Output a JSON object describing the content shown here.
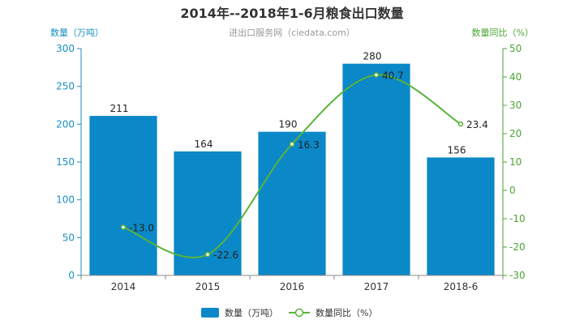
{
  "chart_data": {
    "type": "bar",
    "title": "2014年--2018年1-6月粮食出口数量",
    "subtitle": "进出口服务网（ciedata.com）",
    "categories": [
      "2014",
      "2015",
      "2016",
      "2017",
      "2018-6"
    ],
    "series": [
      {
        "name": "数量（万吨）",
        "type": "bar",
        "axis": "left",
        "values": [
          211,
          164,
          190,
          280,
          156
        ]
      },
      {
        "name": "数量同比（%）",
        "type": "line",
        "axis": "right",
        "values": [
          -13.0,
          -22.6,
          16.3,
          40.7,
          23.4
        ]
      }
    ],
    "y_left": {
      "label": "数量（万吨）",
      "min": 0,
      "max": 300,
      "ticks": [
        0,
        50,
        100,
        150,
        200,
        250,
        300
      ]
    },
    "y_right": {
      "label": "数量同比（%）",
      "min": -30,
      "max": 50,
      "ticks": [
        -30,
        -20,
        -10,
        0,
        10,
        20,
        30,
        40,
        50
      ]
    },
    "grid": false,
    "legend_position": "bottom-center",
    "colors": {
      "bar": "#0b88c7",
      "line": "#59b339",
      "left_axis": "#1a8fc3",
      "right_axis": "#4aa534",
      "title": "#333333",
      "subtitle": "#999999"
    }
  }
}
